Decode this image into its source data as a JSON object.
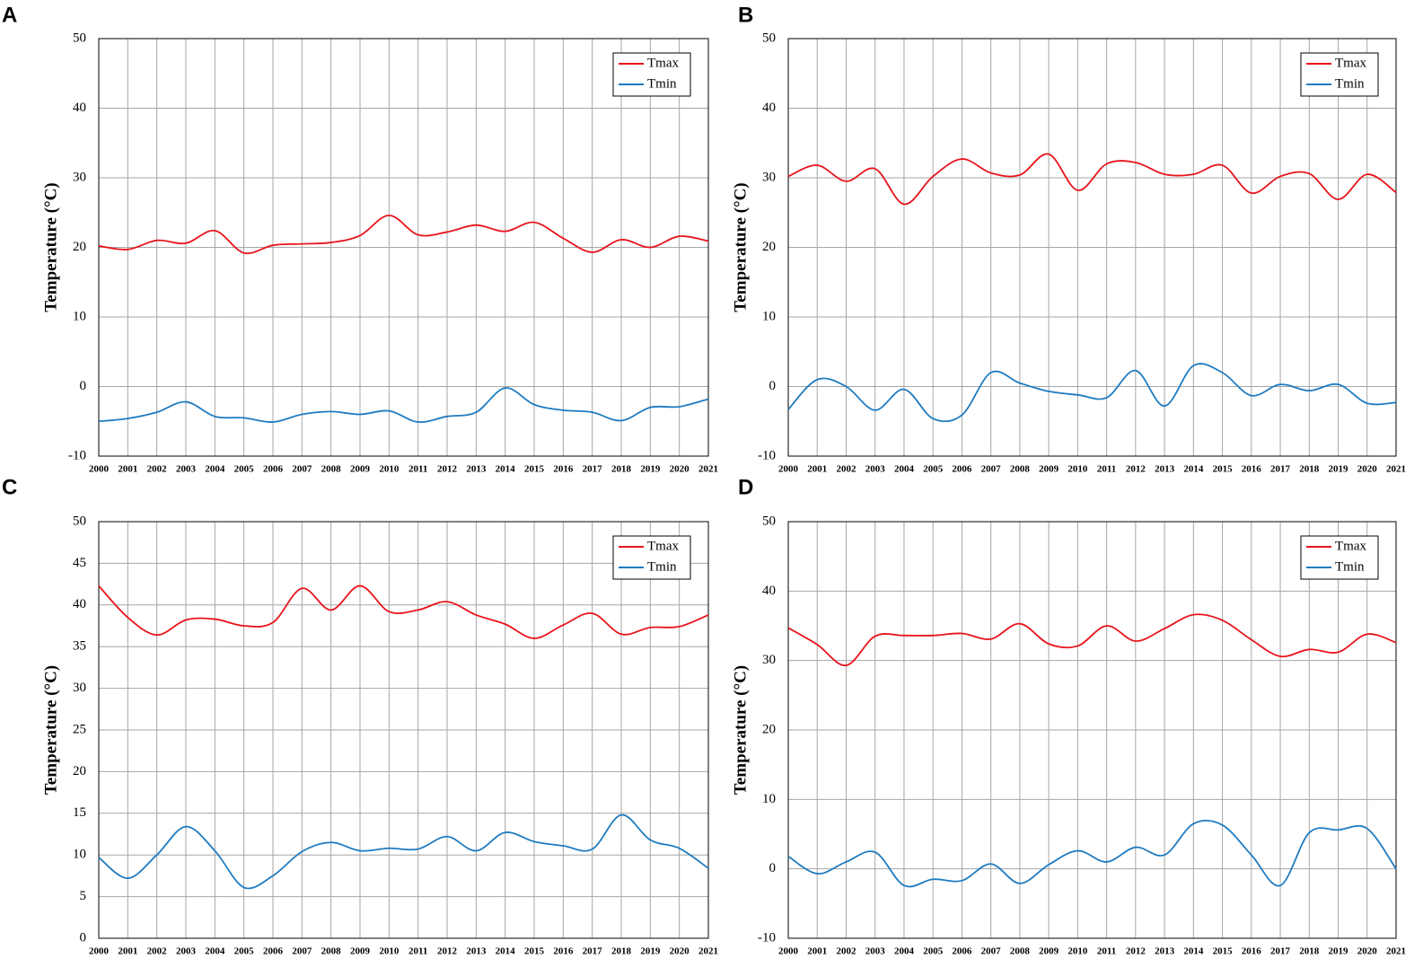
{
  "chart_data": [
    {
      "type": "line",
      "panel": "A",
      "y_label": "Temperature (°C)",
      "x": [
        2000,
        2001,
        2002,
        2003,
        2004,
        2005,
        2006,
        2007,
        2008,
        2009,
        2010,
        2011,
        2012,
        2013,
        2014,
        2015,
        2016,
        2017,
        2018,
        2019,
        2020,
        2021
      ],
      "xlim": [
        2000,
        2021
      ],
      "ylim": [
        -10,
        50
      ],
      "yticks": [
        -10,
        0,
        10,
        20,
        30,
        40,
        50
      ],
      "grid": true,
      "legend": "upper right",
      "series": [
        {
          "name": "Tmax",
          "color": "#e8141b",
          "values": [
            20.2,
            19.7,
            21,
            20.6,
            22.4,
            19.2,
            20.3,
            20.5,
            20.7,
            21.7,
            24.6,
            21.8,
            22.2,
            23.2,
            22.3,
            23.6,
            21.3,
            19.3,
            21.1,
            20,
            21.6,
            20.9
          ]
        },
        {
          "name": "Tmin",
          "color": "#1f7bc0",
          "values": [
            -5,
            -4.6,
            -3.7,
            -2.2,
            -4.3,
            -4.5,
            -5.1,
            -4,
            -3.6,
            -4,
            -3.5,
            -5.1,
            -4.3,
            -3.7,
            -0.2,
            -2.6,
            -3.4,
            -3.7,
            -4.9,
            -3,
            -2.9,
            -1.8
          ]
        }
      ]
    },
    {
      "type": "line",
      "panel": "B",
      "y_label": "Temperature (°C)",
      "x": [
        2000,
        2001,
        2002,
        2003,
        2004,
        2005,
        2006,
        2007,
        2008,
        2009,
        2010,
        2011,
        2012,
        2013,
        2014,
        2015,
        2016,
        2017,
        2018,
        2019,
        2020,
        2021
      ],
      "xlim": [
        2000,
        2021
      ],
      "ylim": [
        -10,
        50
      ],
      "yticks": [
        -10,
        0,
        10,
        20,
        30,
        40,
        50
      ],
      "grid": true,
      "legend": "upper right",
      "series": [
        {
          "name": "Tmax",
          "color": "#e8141b",
          "values": [
            30.2,
            31.8,
            29.5,
            31.3,
            26.2,
            30.2,
            32.7,
            30.7,
            30.4,
            33.4,
            28.2,
            32,
            32.2,
            30.5,
            30.5,
            31.8,
            27.8,
            30.2,
            30.6,
            26.9,
            30.5,
            27.9
          ]
        },
        {
          "name": "Tmin",
          "color": "#1f7bc0",
          "values": [
            -3.3,
            1,
            0,
            -3.4,
            -0.4,
            -4.6,
            -4.1,
            2,
            0.5,
            -0.7,
            -1.2,
            -1.6,
            2.3,
            -2.8,
            3,
            2,
            -1.3,
            0.3,
            -0.6,
            0.3,
            -2.4,
            -2.3
          ]
        }
      ]
    },
    {
      "type": "line",
      "panel": "C",
      "y_label": "Temperature (°C)",
      "x": [
        2000,
        2001,
        2002,
        2003,
        2004,
        2005,
        2006,
        2007,
        2008,
        2009,
        2010,
        2011,
        2012,
        2013,
        2014,
        2015,
        2016,
        2017,
        2018,
        2019,
        2020,
        2021
      ],
      "xlim": [
        2000,
        2021
      ],
      "ylim": [
        0,
        50
      ],
      "yticks": [
        0,
        5,
        10,
        15,
        20,
        25,
        30,
        35,
        40,
        45,
        50
      ],
      "grid": true,
      "legend": "upper right",
      "series": [
        {
          "name": "Tmax",
          "color": "#e8141b",
          "values": [
            42.3,
            38.5,
            36.4,
            38.2,
            38.3,
            37.5,
            37.9,
            42,
            39.4,
            42.3,
            39.2,
            39.4,
            40.4,
            38.8,
            37.7,
            36,
            37.6,
            39,
            36.5,
            37.3,
            37.4,
            38.8
          ]
        },
        {
          "name": "Tmin",
          "color": "#1f7bc0",
          "values": [
            9.7,
            7.2,
            10,
            13.4,
            10.5,
            6.1,
            7.5,
            10.4,
            11.5,
            10.5,
            10.8,
            10.7,
            12.2,
            10.5,
            12.7,
            11.6,
            11.1,
            10.7,
            14.8,
            11.8,
            10.8,
            8.4
          ]
        }
      ]
    },
    {
      "type": "line",
      "panel": "D",
      "y_label": "Temperature (°C)",
      "x": [
        2000,
        2001,
        2002,
        2003,
        2004,
        2005,
        2006,
        2007,
        2008,
        2009,
        2010,
        2011,
        2012,
        2013,
        2014,
        2015,
        2016,
        2017,
        2018,
        2019,
        2020,
        2021
      ],
      "xlim": [
        2000,
        2021
      ],
      "ylim": [
        -10,
        50
      ],
      "yticks": [
        -10,
        0,
        10,
        20,
        30,
        40,
        50
      ],
      "grid": true,
      "legend": "upper right",
      "series": [
        {
          "name": "Tmax",
          "color": "#e8141b",
          "values": [
            34.7,
            32.3,
            29.3,
            33.5,
            33.6,
            33.6,
            33.9,
            33.1,
            35.3,
            32.4,
            32.1,
            35,
            32.8,
            34.6,
            36.6,
            35.8,
            33,
            30.6,
            31.6,
            31.2,
            33.8,
            32.6
          ]
        },
        {
          "name": "Tmin",
          "color": "#1f7bc0",
          "values": [
            1.8,
            -0.7,
            1,
            2.4,
            -2.4,
            -1.5,
            -1.7,
            0.7,
            -2.1,
            0.6,
            2.6,
            1,
            3.1,
            2,
            6.5,
            6.3,
            2,
            -2.4,
            5.2,
            5.6,
            5.8,
            0
          ]
        }
      ]
    }
  ]
}
